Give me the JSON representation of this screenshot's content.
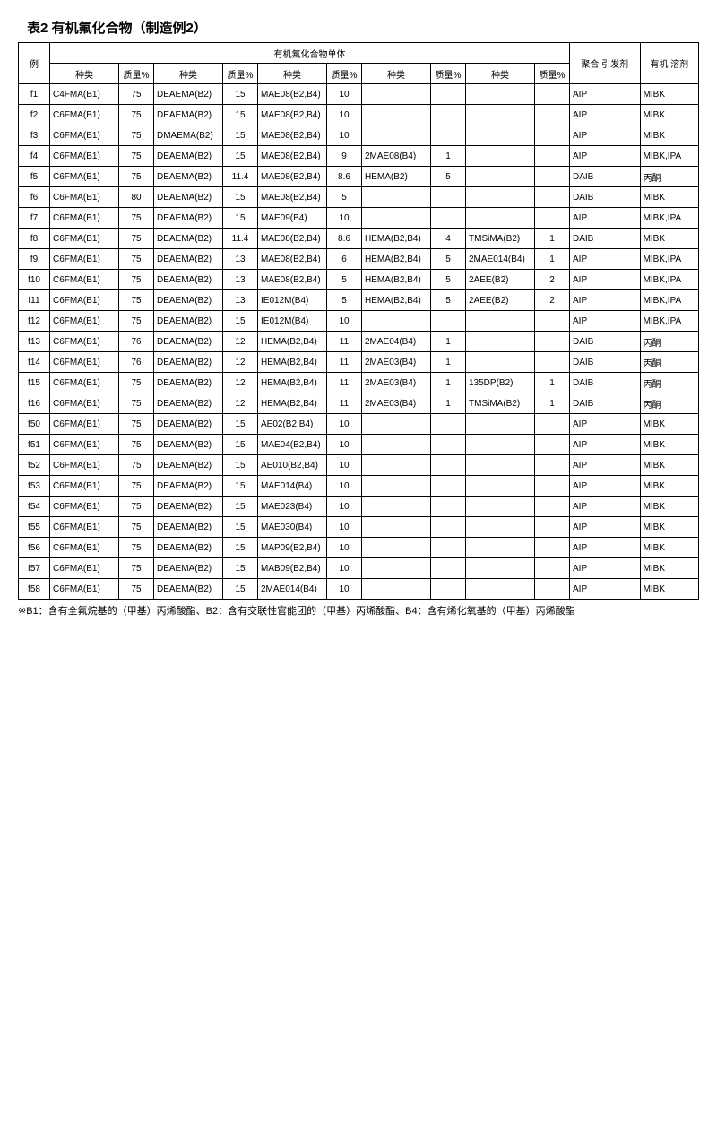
{
  "title": "表2 有机氟化合物（制造例2）",
  "footnote": "※B1：含有全氟烷基的（甲基）丙烯酸酯、B2：含有交联性官能团的（甲基）丙烯酸酯、B4：含有烯化氧基的（甲基）丙烯酸酯",
  "headers": {
    "example": "例",
    "monomer_group": "有机氟化合物单体",
    "type": "种类",
    "mass": "质量%",
    "initiator": "聚合\n引发剂",
    "solvent": "有机\n溶剂"
  },
  "rows": [
    {
      "ex": "f1",
      "t1": "C4FMA(B1)",
      "m1": "75",
      "t2": "DEAEMA(B2)",
      "m2": "15",
      "t3": "MAE08(B2,B4)",
      "m3": "10",
      "t4": "",
      "m4": "",
      "t5": "",
      "m5": "",
      "init": "AIP",
      "solv": "MIBK"
    },
    {
      "ex": "f2",
      "t1": "C6FMA(B1)",
      "m1": "75",
      "t2": "DEAEMA(B2)",
      "m2": "15",
      "t3": "MAE08(B2,B4)",
      "m3": "10",
      "t4": "",
      "m4": "",
      "t5": "",
      "m5": "",
      "init": "AIP",
      "solv": "MIBK"
    },
    {
      "ex": "f3",
      "t1": "C6FMA(B1)",
      "m1": "75",
      "t2": "DMAEMA(B2)",
      "m2": "15",
      "t3": "MAE08(B2,B4)",
      "m3": "10",
      "t4": "",
      "m4": "",
      "t5": "",
      "m5": "",
      "init": "AIP",
      "solv": "MIBK"
    },
    {
      "ex": "f4",
      "t1": "C6FMA(B1)",
      "m1": "75",
      "t2": "DEAEMA(B2)",
      "m2": "15",
      "t3": "MAE08(B2,B4)",
      "m3": "9",
      "t4": "2MAE08(B4)",
      "m4": "1",
      "t5": "",
      "m5": "",
      "init": "AIP",
      "solv": "MIBK,IPA"
    },
    {
      "ex": "f5",
      "t1": "C6FMA(B1)",
      "m1": "75",
      "t2": "DEAEMA(B2)",
      "m2": "11.4",
      "t3": "MAE08(B2,B4)",
      "m3": "8.6",
      "t4": "HEMA(B2)",
      "m4": "5",
      "t5": "",
      "m5": "",
      "init": "DAIB",
      "solv": "丙酮"
    },
    {
      "ex": "f6",
      "t1": "C6FMA(B1)",
      "m1": "80",
      "t2": "DEAEMA(B2)",
      "m2": "15",
      "t3": "MAE08(B2,B4)",
      "m3": "5",
      "t4": "",
      "m4": "",
      "t5": "",
      "m5": "",
      "init": "DAIB",
      "solv": "MIBK"
    },
    {
      "ex": "f7",
      "t1": "C6FMA(B1)",
      "m1": "75",
      "t2": "DEAEMA(B2)",
      "m2": "15",
      "t3": "MAE09(B4)",
      "m3": "10",
      "t4": "",
      "m4": "",
      "t5": "",
      "m5": "",
      "init": "AIP",
      "solv": "MIBK,IPA"
    },
    {
      "ex": "f8",
      "t1": "C6FMA(B1)",
      "m1": "75",
      "t2": "DEAEMA(B2)",
      "m2": "11.4",
      "t3": "MAE08(B2,B4)",
      "m3": "8.6",
      "t4": "HEMA(B2,B4)",
      "m4": "4",
      "t5": "TMSiMA(B2)",
      "m5": "1",
      "init": "DAIB",
      "solv": "MIBK"
    },
    {
      "ex": "f9",
      "t1": "C6FMA(B1)",
      "m1": "75",
      "t2": "DEAEMA(B2)",
      "m2": "13",
      "t3": "MAE08(B2,B4)",
      "m3": "6",
      "t4": "HEMA(B2,B4)",
      "m4": "5",
      "t5": "2MAE014(B4)",
      "m5": "1",
      "init": "AIP",
      "solv": "MIBK,IPA"
    },
    {
      "ex": "f10",
      "t1": "C6FMA(B1)",
      "m1": "75",
      "t2": "DEAEMA(B2)",
      "m2": "13",
      "t3": "MAE08(B2,B4)",
      "m3": "5",
      "t4": "HEMA(B2,B4)",
      "m4": "5",
      "t5": "2AEE(B2)",
      "m5": "2",
      "init": "AIP",
      "solv": "MIBK,IPA"
    },
    {
      "ex": "f11",
      "t1": "C6FMA(B1)",
      "m1": "75",
      "t2": "DEAEMA(B2)",
      "m2": "13",
      "t3": "IE012M(B4)",
      "m3": "5",
      "t4": "HEMA(B2,B4)",
      "m4": "5",
      "t5": "2AEE(B2)",
      "m5": "2",
      "init": "AIP",
      "solv": "MIBK,IPA"
    },
    {
      "ex": "f12",
      "t1": "C6FMA(B1)",
      "m1": "75",
      "t2": "DEAEMA(B2)",
      "m2": "15",
      "t3": "IE012M(B4)",
      "m3": "10",
      "t4": "",
      "m4": "",
      "t5": "",
      "m5": "",
      "init": "AIP",
      "solv": "MIBK,IPA"
    },
    {
      "ex": "f13",
      "t1": "C6FMA(B1)",
      "m1": "76",
      "t2": "DEAEMA(B2)",
      "m2": "12",
      "t3": "HEMA(B2,B4)",
      "m3": "11",
      "t4": "2MAE04(B4)",
      "m4": "1",
      "t5": "",
      "m5": "",
      "init": "DAIB",
      "solv": "丙酮"
    },
    {
      "ex": "f14",
      "t1": "C6FMA(B1)",
      "m1": "76",
      "t2": "DEAEMA(B2)",
      "m2": "12",
      "t3": "HEMA(B2,B4)",
      "m3": "11",
      "t4": "2MAE03(B4)",
      "m4": "1",
      "t5": "",
      "m5": "",
      "init": "DAIB",
      "solv": "丙酮"
    },
    {
      "ex": "f15",
      "t1": "C6FMA(B1)",
      "m1": "75",
      "t2": "DEAEMA(B2)",
      "m2": "12",
      "t3": "HEMA(B2,B4)",
      "m3": "11",
      "t4": "2MAE03(B4)",
      "m4": "1",
      "t5": "135DP(B2)",
      "m5": "1",
      "init": "DAIB",
      "solv": "丙酮"
    },
    {
      "ex": "f16",
      "t1": "C6FMA(B1)",
      "m1": "75",
      "t2": "DEAEMA(B2)",
      "m2": "12",
      "t3": "HEMA(B2,B4)",
      "m3": "11",
      "t4": "2MAE03(B4)",
      "m4": "1",
      "t5": "TMSiMA(B2)",
      "m5": "1",
      "init": "DAIB",
      "solv": "丙酮"
    },
    {
      "ex": "f50",
      "t1": "C6FMA(B1)",
      "m1": "75",
      "t2": "DEAEMA(B2)",
      "m2": "15",
      "t3": "AE02(B2,B4)",
      "m3": "10",
      "t4": "",
      "m4": "",
      "t5": "",
      "m5": "",
      "init": "AIP",
      "solv": "MIBK"
    },
    {
      "ex": "f51",
      "t1": "C6FMA(B1)",
      "m1": "75",
      "t2": "DEAEMA(B2)",
      "m2": "15",
      "t3": "MAE04(B2,B4)",
      "m3": "10",
      "t4": "",
      "m4": "",
      "t5": "",
      "m5": "",
      "init": "AIP",
      "solv": "MIBK"
    },
    {
      "ex": "f52",
      "t1": "C6FMA(B1)",
      "m1": "75",
      "t2": "DEAEMA(B2)",
      "m2": "15",
      "t3": "AE010(B2,B4)",
      "m3": "10",
      "t4": "",
      "m4": "",
      "t5": "",
      "m5": "",
      "init": "AIP",
      "solv": "MIBK"
    },
    {
      "ex": "f53",
      "t1": "C6FMA(B1)",
      "m1": "75",
      "t2": "DEAEMA(B2)",
      "m2": "15",
      "t3": "MAE014(B4)",
      "m3": "10",
      "t4": "",
      "m4": "",
      "t5": "",
      "m5": "",
      "init": "AIP",
      "solv": "MIBK"
    },
    {
      "ex": "f54",
      "t1": "C6FMA(B1)",
      "m1": "75",
      "t2": "DEAEMA(B2)",
      "m2": "15",
      "t3": "MAE023(B4)",
      "m3": "10",
      "t4": "",
      "m4": "",
      "t5": "",
      "m5": "",
      "init": "AIP",
      "solv": "MIBK"
    },
    {
      "ex": "f55",
      "t1": "C6FMA(B1)",
      "m1": "75",
      "t2": "DEAEMA(B2)",
      "m2": "15",
      "t3": "MAE030(B4)",
      "m3": "10",
      "t4": "",
      "m4": "",
      "t5": "",
      "m5": "",
      "init": "AIP",
      "solv": "MIBK"
    },
    {
      "ex": "f56",
      "t1": "C6FMA(B1)",
      "m1": "75",
      "t2": "DEAEMA(B2)",
      "m2": "15",
      "t3": "MAP09(B2,B4)",
      "m3": "10",
      "t4": "",
      "m4": "",
      "t5": "",
      "m5": "",
      "init": "AIP",
      "solv": "MIBK"
    },
    {
      "ex": "f57",
      "t1": "C6FMA(B1)",
      "m1": "75",
      "t2": "DEAEMA(B2)",
      "m2": "15",
      "t3": "MAB09(B2,B4)",
      "m3": "10",
      "t4": "",
      "m4": "",
      "t5": "",
      "m5": "",
      "init": "AIP",
      "solv": "MIBK"
    },
    {
      "ex": "f58",
      "t1": "C6FMA(B1)",
      "m1": "75",
      "t2": "DEAEMA(B2)",
      "m2": "15",
      "t3": "2MAE014(B4)",
      "m3": "10",
      "t4": "",
      "m4": "",
      "t5": "",
      "m5": "",
      "init": "AIP",
      "solv": "MIBK"
    }
  ]
}
